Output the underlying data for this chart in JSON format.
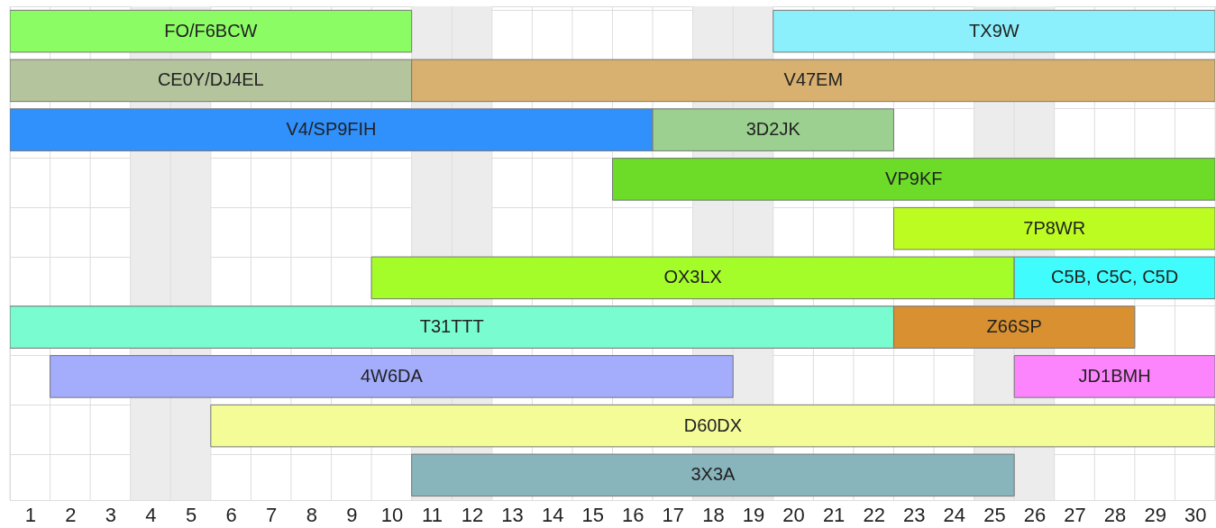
{
  "chart_data": {
    "type": "bar",
    "orientation": "horizontal",
    "categories": [
      null,
      null,
      null,
      null,
      null,
      null,
      null,
      null,
      null,
      null
    ],
    "series": [
      {
        "name": "FO/F6BCW",
        "color": "#8cfc64",
        "values": [
          10,
          null,
          null,
          null,
          null,
          null,
          null,
          null,
          null,
          null
        ],
        "base": [
          0.5,
          null,
          null,
          null,
          null,
          null,
          null,
          null,
          null,
          null
        ]
      },
      {
        "name": "TX9W",
        "color": "#8cf0fc",
        "values": [
          11,
          null,
          null,
          null,
          null,
          null,
          null,
          null,
          null,
          null
        ],
        "base": [
          19.5,
          null,
          null,
          null,
          null,
          null,
          null,
          null,
          null,
          null
        ]
      },
      {
        "name": "CE0Y/DJ4EL",
        "color": "#b4c49c",
        "values": [
          null,
          10,
          null,
          null,
          null,
          null,
          null,
          null,
          null,
          null
        ],
        "base": [
          null,
          0.5,
          null,
          null,
          null,
          null,
          null,
          null,
          null,
          null
        ]
      },
      {
        "name": "V47EM",
        "color": "#d8b070",
        "values": [
          null,
          20,
          null,
          null,
          null,
          null,
          null,
          null,
          null,
          null
        ],
        "base": [
          null,
          10.5,
          null,
          null,
          null,
          null,
          null,
          null,
          null,
          null
        ]
      },
      {
        "name": "V4/SP9FIH",
        "color": "#3090fc",
        "values": [
          null,
          null,
          16,
          null,
          null,
          null,
          null,
          null,
          null,
          null
        ],
        "base": [
          null,
          null,
          0.5,
          null,
          null,
          null,
          null,
          null,
          null,
          null
        ]
      },
      {
        "name": "3D2JK",
        "color": "#9cd090",
        "values": [
          null,
          null,
          6,
          null,
          null,
          null,
          null,
          null,
          null,
          null
        ],
        "base": [
          null,
          null,
          16.5,
          null,
          null,
          null,
          null,
          null,
          null,
          null
        ]
      },
      {
        "name": "VP9KF",
        "color": "#6cdc28",
        "values": [
          null,
          null,
          null,
          15,
          null,
          null,
          null,
          null,
          null,
          null
        ],
        "base": [
          null,
          null,
          null,
          15.5,
          null,
          null,
          null,
          null,
          null,
          null
        ]
      },
      {
        "name": "7P8WR",
        "color": "#bcfc20",
        "values": [
          null,
          null,
          null,
          null,
          8,
          null,
          null,
          null,
          null,
          null
        ],
        "base": [
          null,
          null,
          null,
          null,
          22.5,
          null,
          null,
          null,
          null,
          null
        ]
      },
      {
        "name": "OX3LX",
        "color": "#a4fc28",
        "values": [
          null,
          null,
          null,
          null,
          null,
          16,
          null,
          null,
          null,
          null
        ],
        "base": [
          null,
          null,
          null,
          null,
          null,
          9.5,
          null,
          null,
          null,
          null
        ]
      },
      {
        "name": "C5B, C5C, C5D",
        "color": "#40fcfc",
        "values": [
          null,
          null,
          null,
          null,
          null,
          5,
          null,
          null,
          null,
          null
        ],
        "base": [
          null,
          null,
          null,
          null,
          null,
          25.5,
          null,
          null,
          null,
          null
        ]
      },
      {
        "name": "T31TTT",
        "color": "#78fcd0",
        "values": [
          null,
          null,
          null,
          null,
          null,
          null,
          22,
          null,
          null,
          null
        ],
        "base": [
          null,
          null,
          null,
          null,
          null,
          null,
          0.5,
          null,
          null,
          null
        ]
      },
      {
        "name": "Z66SP",
        "color": "#d89030",
        "values": [
          null,
          null,
          null,
          null,
          null,
          null,
          6,
          null,
          null,
          null
        ],
        "base": [
          null,
          null,
          null,
          null,
          null,
          null,
          22.5,
          null,
          null,
          null
        ]
      },
      {
        "name": "4W6DA",
        "color": "#a4acfc",
        "values": [
          null,
          null,
          null,
          null,
          null,
          null,
          null,
          17,
          null,
          null
        ],
        "base": [
          null,
          null,
          null,
          null,
          null,
          null,
          null,
          1.5,
          null,
          null
        ]
      },
      {
        "name": "JD1BMH",
        "color": "#fc84fc",
        "values": [
          null,
          null,
          null,
          null,
          null,
          null,
          null,
          5,
          null,
          null
        ],
        "base": [
          null,
          null,
          null,
          null,
          null,
          null,
          null,
          25.5,
          null,
          null
        ]
      },
      {
        "name": "D60DX",
        "color": "#f4fc98",
        "values": [
          null,
          null,
          null,
          null,
          null,
          null,
          null,
          null,
          25,
          null
        ],
        "base": [
          null,
          null,
          null,
          null,
          null,
          null,
          null,
          null,
          5.5,
          null
        ]
      },
      {
        "name": "3X3A",
        "color": "#88b4bc",
        "values": [
          null,
          null,
          null,
          null,
          null,
          null,
          null,
          null,
          null,
          15
        ],
        "base": [
          null,
          null,
          null,
          null,
          null,
          null,
          null,
          null,
          null,
          10.5
        ]
      }
    ],
    "xlim": [
      0.5,
      30.5
    ],
    "xticks": [
      {
        "value": 0.5,
        "label": null
      },
      1,
      {
        "value": 1.5,
        "label": null
      },
      2,
      {
        "value": 2.5,
        "label": null
      },
      3,
      {
        "value": 3.5,
        "label": null
      },
      4,
      {
        "value": 4.5,
        "label": null
      },
      5,
      {
        "value": 5.5,
        "label": null
      },
      6,
      {
        "value": 6.5,
        "label": null
      },
      7,
      {
        "value": 7.5,
        "label": null
      },
      8,
      {
        "value": 8.5,
        "label": null
      },
      9,
      {
        "value": 9.5,
        "label": null
      },
      10,
      {
        "value": 10.5,
        "label": null
      },
      11,
      {
        "value": 11.5,
        "label": null
      },
      12,
      {
        "value": 12.5,
        "label": null
      },
      13,
      {
        "value": 13.5,
        "label": null
      },
      14,
      {
        "value": 14.5,
        "label": null
      },
      15,
      {
        "value": 15.5,
        "label": null
      },
      16,
      {
        "value": 16.5,
        "label": null
      },
      17,
      {
        "value": 17.5,
        "label": null
      },
      18,
      {
        "value": 18.5,
        "label": null
      },
      19,
      {
        "value": 19.5,
        "label": null
      },
      20,
      {
        "value": 20.5,
        "label": null
      },
      21,
      {
        "value": 21.5,
        "label": null
      },
      22,
      {
        "value": 22.5,
        "label": null
      },
      23,
      {
        "value": 23.5,
        "label": null
      },
      24,
      {
        "value": 24.5,
        "label": null
      },
      25,
      {
        "value": 25.5,
        "label": null
      },
      26,
      {
        "value": 26.5,
        "label": null
      },
      27,
      {
        "value": 27.5,
        "label": null
      },
      28,
      {
        "value": 28.5,
        "label": null
      },
      29,
      {
        "value": 29.5,
        "label": null
      },
      30,
      {
        "value": 30.5,
        "label": null
      }
    ],
    "bands": [
      {
        "axis": "x",
        "from": 3.5,
        "to": 5.5,
        "color": "#ececec"
      },
      {
        "axis": "x",
        "from": 10.5,
        "to": 12.5,
        "color": "#ececec"
      },
      {
        "axis": "x",
        "from": 17.5,
        "to": 19.5,
        "color": "#ececec"
      },
      {
        "axis": "x",
        "from": 24.5,
        "to": 26.5,
        "color": "#ececec"
      }
    ],
    "grid": true
  }
}
